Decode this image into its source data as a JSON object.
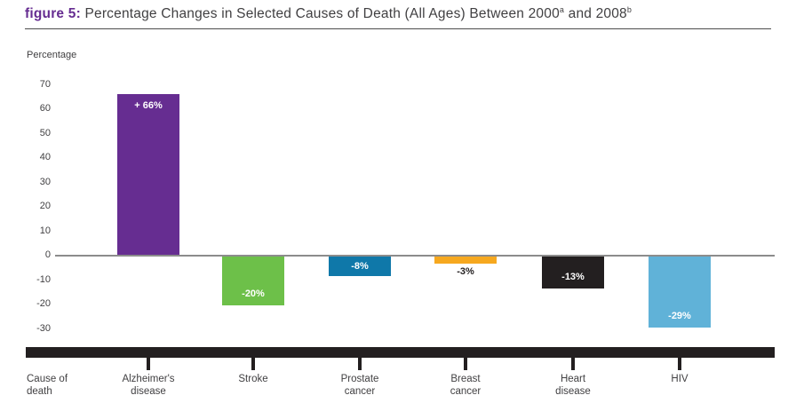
{
  "title": {
    "figure_label": "figure 5:",
    "text_main": " Percentage Changes in Selected Causes of Death (All Ages) Between 2000",
    "sup_a": "a",
    "text_mid": " and 2008",
    "sup_b": "b"
  },
  "chart_data": {
    "type": "bar",
    "title": "Percentage Changes in Selected Causes of Death (All Ages) Between 2000 and 2008",
    "ylabel": "Percentage",
    "xlabel": "Cause of death",
    "ylim": [
      -30,
      70
    ],
    "yticks": [
      70,
      60,
      50,
      40,
      30,
      20,
      10,
      0,
      -10,
      -20,
      -30
    ],
    "categories": [
      "Alzheimer's disease",
      "Stroke",
      "Prostate cancer",
      "Breast cancer",
      "Heart disease",
      "HIV"
    ],
    "values": [
      66,
      -20,
      -8,
      -3,
      -13,
      -29
    ],
    "bar_labels": [
      "+ 66%",
      "-20%",
      "-8%",
      "-3%",
      "-13%",
      "-29%"
    ],
    "bar_colors": [
      "#662d91",
      "#6dc049",
      "#0f78a9",
      "#f6a81f",
      "#231f20",
      "#60b2d8"
    ],
    "bar_label_colors": [
      "#ffffff",
      "#ffffff",
      "#ffffff",
      "#231f20",
      "#ffffff",
      "#ffffff"
    ],
    "bar_label_positions": [
      "top",
      "bottom",
      "center",
      "below",
      "bottom",
      "bottom"
    ],
    "grid": false,
    "legend": false
  }
}
